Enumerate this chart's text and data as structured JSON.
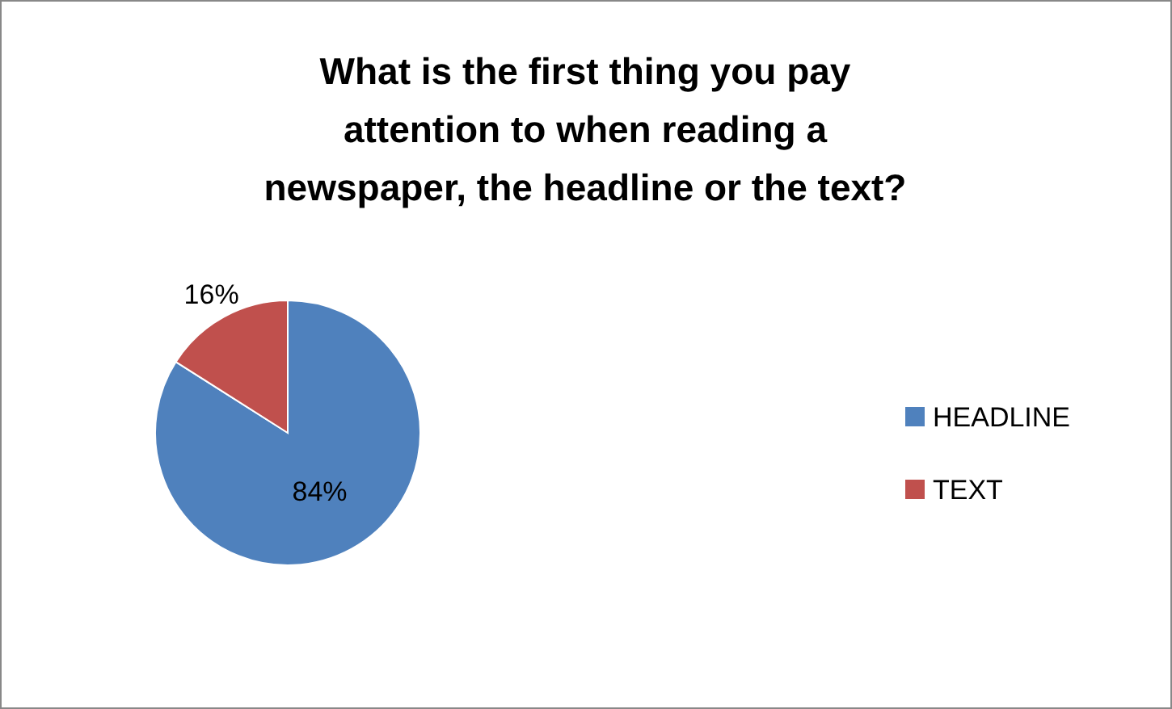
{
  "chart_data": {
    "type": "pie",
    "title": "What is the first thing you pay attention to when reading a newspaper, the headline or the text?",
    "categories": [
      "HEADLINE",
      "TEXT"
    ],
    "values": [
      84,
      16
    ],
    "colors": [
      "#4f81bd",
      "#c0504d"
    ],
    "value_labels": [
      "84%",
      "16%"
    ],
    "legend": "right"
  }
}
